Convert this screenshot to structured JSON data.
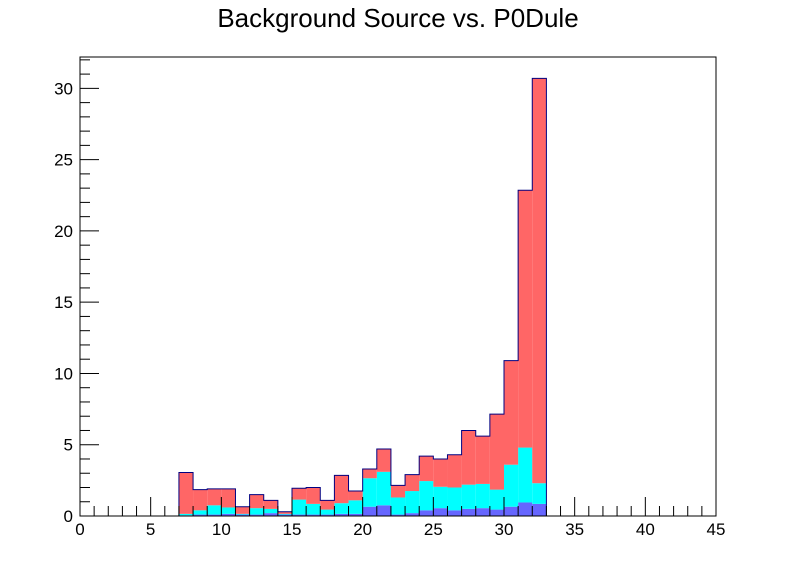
{
  "chart_data": {
    "type": "bar",
    "stacked": true,
    "title": "Background Source vs. P0Dule",
    "xlabel": "",
    "ylabel": "",
    "xlim": [
      0,
      45
    ],
    "ylim": [
      0,
      32.2
    ],
    "bin_width": 1,
    "x": [
      7,
      8,
      9,
      10,
      11,
      12,
      13,
      14,
      15,
      16,
      17,
      18,
      19,
      20,
      21,
      22,
      23,
      24,
      25,
      26,
      27,
      28,
      29,
      30,
      31,
      32
    ],
    "x_ticks": [
      "0",
      "5",
      "10",
      "15",
      "20",
      "25",
      "30",
      "35",
      "40",
      "45"
    ],
    "y_ticks": [
      "0",
      "5",
      "10",
      "15",
      "20",
      "25",
      "30"
    ],
    "grid": false,
    "legend": "none",
    "series": [
      {
        "color": "#6666ff",
        "values": [
          0.05,
          0.1,
          0.1,
          0.15,
          0.1,
          0.1,
          0.2,
          0.1,
          0.1,
          0.1,
          0.1,
          0.15,
          0.15,
          0.65,
          0.75,
          0.1,
          0.2,
          0.4,
          0.55,
          0.4,
          0.5,
          0.55,
          0.45,
          0.65,
          0.95,
          0.85
        ]
      },
      {
        "color": "#00ffff",
        "values": [
          0.1,
          0.3,
          0.65,
          0.45,
          0.05,
          0.45,
          0.3,
          0.05,
          1.05,
          0.75,
          0.35,
          0.75,
          0.95,
          2.0,
          2.35,
          1.2,
          1.55,
          2.05,
          1.5,
          1.6,
          1.7,
          1.7,
          1.4,
          2.95,
          3.85,
          1.45
        ]
      },
      {
        "color": "#ff6666",
        "values": [
          2.9,
          1.45,
          1.15,
          1.3,
          0.5,
          0.95,
          0.6,
          0.15,
          0.8,
          1.15,
          0.65,
          1.95,
          0.65,
          0.65,
          1.6,
          0.85,
          1.15,
          1.75,
          1.95,
          2.3,
          3.8,
          3.35,
          5.3,
          7.3,
          18.05,
          28.4
        ]
      }
    ]
  }
}
